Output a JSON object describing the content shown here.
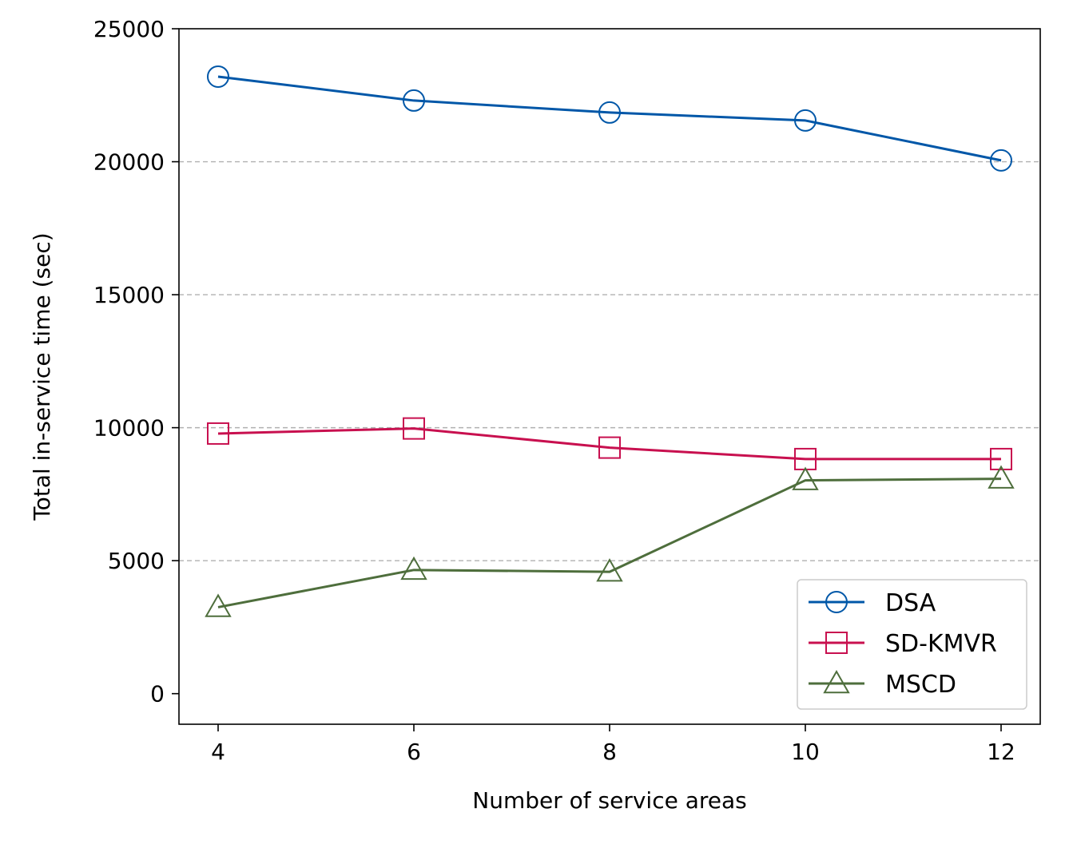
{
  "chart_data": {
    "type": "line",
    "x": [
      4,
      6,
      8,
      10,
      12
    ],
    "xticks": [
      "4",
      "6",
      "8",
      "10",
      "12"
    ],
    "yticks": [
      "0",
      "5000",
      "10000",
      "15000",
      "20000",
      "25000"
    ],
    "xlabel": "Number of service areas",
    "ylabel": "Total in-service time (sec)",
    "xlim": [
      3.6,
      12.4
    ],
    "ylim": [
      -1150,
      25000
    ],
    "grid": "horizontal dashed",
    "legend_position": "lower-right",
    "series": [
      {
        "name": "DSA",
        "marker": "circle",
        "color": "#0057a8",
        "values": [
          23200,
          22300,
          21850,
          21550,
          20050
        ]
      },
      {
        "name": "SD-KMVR",
        "marker": "square",
        "color": "#c8104f",
        "values": [
          9780,
          9970,
          9250,
          8820,
          8820
        ]
      },
      {
        "name": "MSCD",
        "marker": "triangle",
        "color": "#4e6e3c",
        "values": [
          3250,
          4650,
          4580,
          8020,
          8080
        ]
      }
    ]
  }
}
